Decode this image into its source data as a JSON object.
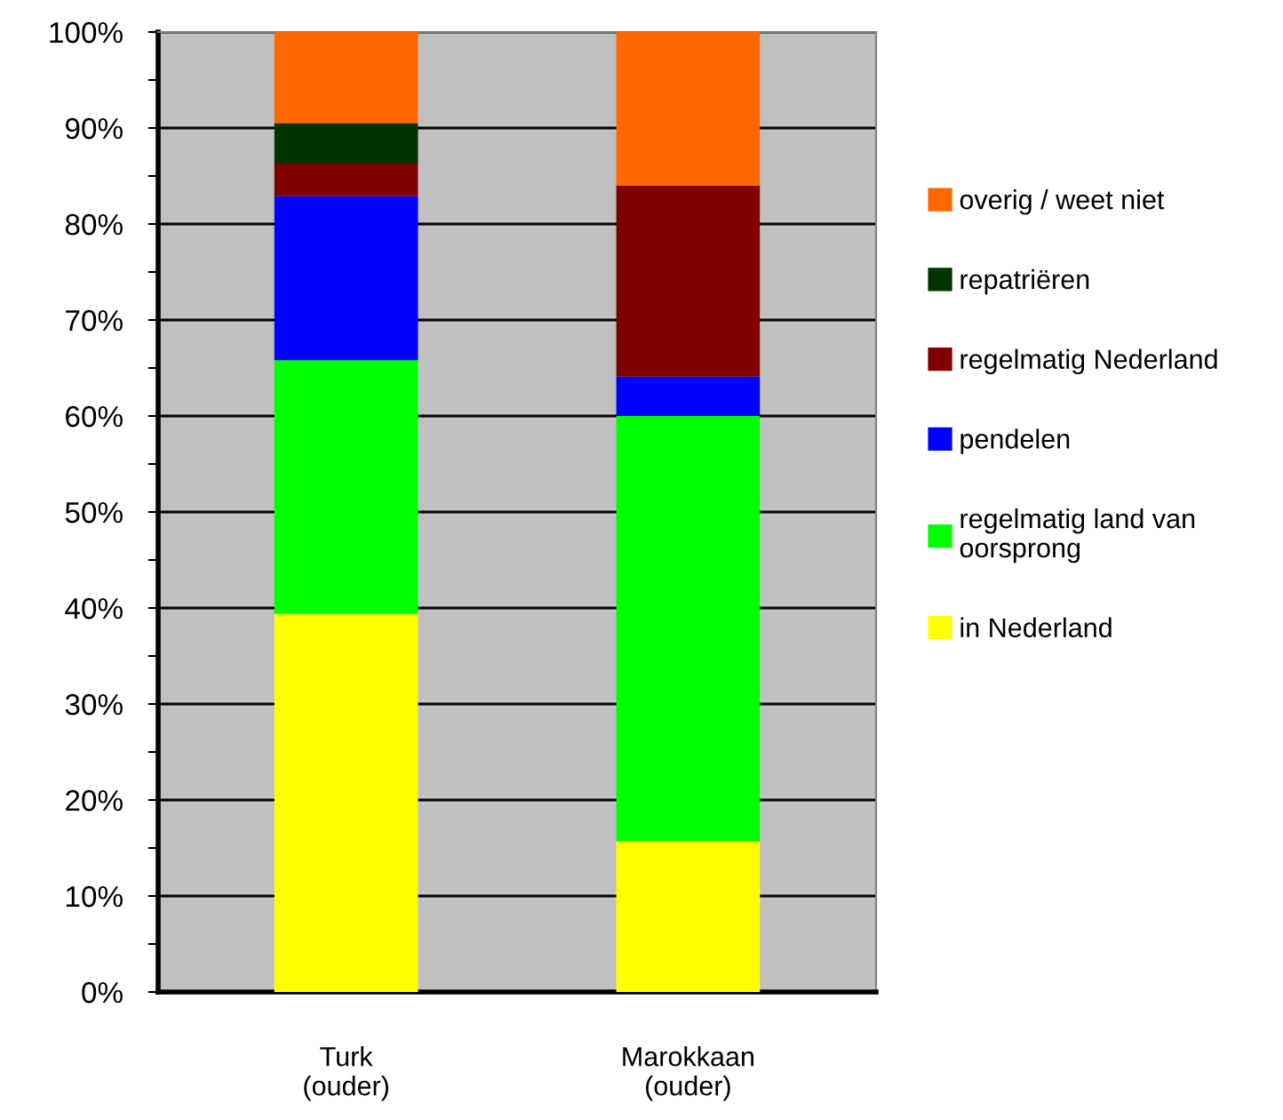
{
  "chart_data": {
    "type": "bar",
    "stacked": true,
    "categories": [
      "Turk\n(ouder)",
      "Marokkaan\n(ouder)"
    ],
    "series": [
      {
        "name": "in Nederland",
        "color": "#ffff00",
        "values": [
          39.4,
          15.7
        ]
      },
      {
        "name": "regelmatig land van\noorsprong",
        "color": "#00ff00",
        "values": [
          26.4,
          44.3
        ]
      },
      {
        "name": "pendelen",
        "color": "#0000ff",
        "values": [
          17.1,
          4.1
        ]
      },
      {
        "name": "regelmatig Nederland",
        "color": "#800000",
        "values": [
          3.4,
          19.9
        ]
      },
      {
        "name": "repatriëren",
        "color": "#003300",
        "values": [
          4.2,
          0
        ]
      },
      {
        "name": "overig / weet niet",
        "color": "#ff6600",
        "values": [
          9.5,
          16.0
        ]
      }
    ],
    "ylim": [
      0,
      100
    ],
    "yticks": [
      {
        "value": 0,
        "label": "0%"
      },
      {
        "value": 5,
        "label": null
      },
      {
        "value": 10,
        "label": "10%"
      },
      {
        "value": 15,
        "label": null
      },
      {
        "value": 20,
        "label": "20%"
      },
      {
        "value": 25,
        "label": null
      },
      {
        "value": 30,
        "label": "30%"
      },
      {
        "value": 35,
        "label": null
      },
      {
        "value": 40,
        "label": "40%"
      },
      {
        "value": 45,
        "label": null
      },
      {
        "value": 50,
        "label": "50%"
      },
      {
        "value": 55,
        "label": null
      },
      {
        "value": 60,
        "label": "60%"
      },
      {
        "value": 65,
        "label": null
      },
      {
        "value": 70,
        "label": "70%"
      },
      {
        "value": 75,
        "label": null
      },
      {
        "value": 80,
        "label": "80%"
      },
      {
        "value": 85,
        "label": null
      },
      {
        "value": 90,
        "label": "90%"
      },
      {
        "value": 95,
        "label": null
      },
      {
        "value": 100,
        "label": "100%"
      }
    ],
    "grid": "y",
    "legend": "right"
  }
}
